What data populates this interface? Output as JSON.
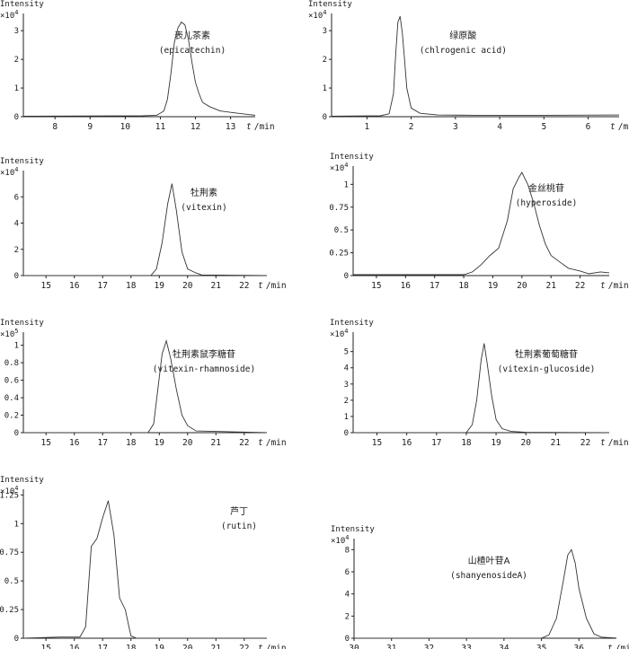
{
  "chart_data": [
    {
      "type": "line",
      "ylabel": "Intensity",
      "multiplier_base": "×10",
      "multiplier_exp": "4",
      "xlabel_var": "t",
      "xlabel_unit": "/min",
      "compound_zh": "表儿茶素",
      "compound_en": "(epicatechin)",
      "xlim": [
        7.1,
        13.7
      ],
      "ylim": [
        0,
        3.6
      ],
      "xticks": [
        8,
        9,
        10,
        11,
        12,
        13
      ],
      "yticks": [
        0,
        1,
        2,
        3
      ],
      "x": [
        7.1,
        10.5,
        10.9,
        11.1,
        11.2,
        11.3,
        11.4,
        11.5,
        11.6,
        11.7,
        11.8,
        11.9,
        12.0,
        12.1,
        12.2,
        12.4,
        12.7,
        13.0,
        13.7
      ],
      "y": [
        0.02,
        0.03,
        0.05,
        0.2,
        0.6,
        1.5,
        2.6,
        3.1,
        3.3,
        3.2,
        2.7,
        1.9,
        1.2,
        0.8,
        0.5,
        0.35,
        0.2,
        0.15,
        0.05
      ]
    },
    {
      "type": "line",
      "ylabel": "Intensity",
      "multiplier_base": "×10",
      "multiplier_exp": "4",
      "xlabel_var": "t",
      "xlabel_unit": "/min",
      "compound_zh": "绿原酸",
      "compound_en": "(chlrogenic acid)",
      "xlim": [
        0.2,
        6.7
      ],
      "ylim": [
        0,
        3.6
      ],
      "xticks": [
        1,
        2,
        3,
        4,
        5,
        6
      ],
      "yticks": [
        0,
        1,
        2,
        3
      ],
      "x": [
        0.2,
        1.3,
        1.5,
        1.6,
        1.65,
        1.7,
        1.75,
        1.8,
        1.85,
        1.9,
        2.0,
        2.2,
        2.6,
        3.5,
        5.0,
        6.7
      ],
      "y": [
        0.02,
        0.03,
        0.1,
        0.8,
        2.2,
        3.3,
        3.5,
        2.9,
        2.0,
        1.0,
        0.3,
        0.12,
        0.06,
        0.05,
        0.05,
        0.06
      ]
    },
    {
      "type": "line",
      "ylabel": "Intensity",
      "multiplier_base": "×10",
      "multiplier_exp": "4",
      "xlabel_var": "t",
      "xlabel_unit": "/min",
      "compound_zh": "牡荆素",
      "compound_en": "(vitexin)",
      "xlim": [
        14.2,
        22.8
      ],
      "ylim": [
        0,
        8
      ],
      "xticks": [
        15,
        16,
        17,
        18,
        19,
        20,
        21,
        22
      ],
      "yticks": [
        0,
        2,
        4,
        6
      ],
      "x": [
        14.2,
        18.7,
        18.9,
        19.1,
        19.3,
        19.45,
        19.6,
        19.8,
        20.0,
        20.3,
        20.5,
        22.8
      ],
      "y": [
        0,
        0,
        0.5,
        2.5,
        5.5,
        7.0,
        5.0,
        1.8,
        0.5,
        0.2,
        0.05,
        0
      ]
    },
    {
      "type": "line",
      "ylabel": "Intensity",
      "multiplier_base": "×10",
      "multiplier_exp": "4",
      "xlabel_var": "t",
      "xlabel_unit": "/min",
      "compound_zh": "金丝桃苷",
      "compound_en": "(hyperoside)",
      "xlim": [
        14.2,
        23
      ],
      "ylim": [
        0,
        1.2
      ],
      "xticks": [
        15,
        16,
        17,
        18,
        19,
        20,
        21,
        22
      ],
      "yticks": [
        0,
        0.25,
        0.5,
        0.75,
        1
      ],
      "x": [
        14.2,
        18.0,
        18.3,
        18.6,
        18.9,
        19.2,
        19.5,
        19.7,
        19.9,
        20.0,
        20.2,
        20.4,
        20.6,
        20.8,
        21.0,
        21.3,
        21.6,
        22.0,
        22.3,
        22.7,
        23.0
      ],
      "y": [
        0.01,
        0.01,
        0.04,
        0.12,
        0.22,
        0.3,
        0.6,
        0.95,
        1.08,
        1.13,
        1.0,
        0.8,
        0.55,
        0.35,
        0.22,
        0.15,
        0.08,
        0.05,
        0.02,
        0.04,
        0.03
      ]
    },
    {
      "type": "line",
      "ylabel": "Intensity",
      "multiplier_base": "×10",
      "multiplier_exp": "5",
      "xlabel_var": "t",
      "xlabel_unit": "/min",
      "compound_zh": "牡荆素鼠李糖苷",
      "compound_en": "(vitexin-rhamnoside)",
      "xlim": [
        14.2,
        22.8
      ],
      "ylim": [
        0,
        1.15
      ],
      "xticks": [
        15,
        16,
        17,
        18,
        19,
        20,
        21,
        22
      ],
      "yticks": [
        0,
        0.2,
        0.4,
        0.6,
        0.8,
        1
      ],
      "x": [
        14.2,
        18.6,
        18.8,
        18.95,
        19.1,
        19.25,
        19.4,
        19.6,
        19.8,
        20.0,
        20.3,
        22.8
      ],
      "y": [
        0,
        0,
        0.1,
        0.5,
        0.9,
        1.05,
        0.85,
        0.5,
        0.2,
        0.08,
        0.02,
        0
      ]
    },
    {
      "type": "line",
      "ylabel": "Intensity",
      "multiplier_base": "×10",
      "multiplier_exp": "4",
      "xlabel_var": "t",
      "xlabel_unit": "/min",
      "compound_zh": "牡荆素葡萄糖苷",
      "compound_en": "(vitexin-glucoside)",
      "xlim": [
        14.2,
        22.8
      ],
      "ylim": [
        0,
        6.2
      ],
      "xticks": [
        15,
        16,
        17,
        18,
        19,
        20,
        21,
        22
      ],
      "yticks": [
        0,
        1,
        2,
        3,
        4,
        5
      ],
      "x": [
        14.2,
        18.0,
        18.2,
        18.35,
        18.5,
        18.6,
        18.7,
        18.85,
        19.0,
        19.2,
        19.5,
        20.0,
        22.8
      ],
      "y": [
        0,
        0,
        0.5,
        2.0,
        4.5,
        5.5,
        4.3,
        2.3,
        0.8,
        0.25,
        0.08,
        0.02,
        0
      ]
    },
    {
      "type": "line",
      "ylabel": "Intensity",
      "multiplier_base": "×10",
      "multiplier_exp": "4",
      "xlabel_var": "t",
      "xlabel_unit": "/min",
      "compound_zh": "芦丁",
      "compound_en": "(rutin)",
      "xlim": [
        14.2,
        22.8
      ],
      "ylim": [
        0,
        1.3
      ],
      "xticks": [
        15,
        16,
        17,
        18,
        19,
        20,
        21,
        22
      ],
      "yticks": [
        0,
        0.25,
        0.5,
        0.75,
        1,
        1.25
      ],
      "x": [
        14.2,
        15.5,
        16.2,
        16.4,
        16.6,
        16.8,
        17.0,
        17.2,
        17.4,
        17.6,
        17.8,
        18.0,
        18.2,
        22.8
      ],
      "y": [
        0,
        0.01,
        0.01,
        0.1,
        0.8,
        0.87,
        1.05,
        1.2,
        0.9,
        0.35,
        0.25,
        0.02,
        0,
        0
      ]
    },
    {
      "type": "line",
      "ylabel": "Intensity",
      "multiplier_base": "×10",
      "multiplier_exp": "4",
      "xlabel_var": "t",
      "xlabel_unit": "/min",
      "compound_zh": "山楂叶苷A",
      "compound_en": "(shanyenosideA)",
      "xlim": [
        30,
        37
      ],
      "ylim": [
        0,
        9
      ],
      "xticks": [
        30,
        31,
        32,
        33,
        34,
        35,
        36
      ],
      "yticks": [
        0,
        2,
        4,
        6,
        8
      ],
      "x": [
        30,
        35.0,
        35.2,
        35.4,
        35.6,
        35.7,
        35.8,
        35.9,
        36.0,
        36.2,
        36.4,
        36.6,
        37.0
      ],
      "y": [
        0,
        0,
        0.3,
        1.8,
        5.5,
        7.5,
        8.0,
        6.8,
        4.5,
        1.8,
        0.4,
        0.1,
        0.02
      ]
    }
  ]
}
